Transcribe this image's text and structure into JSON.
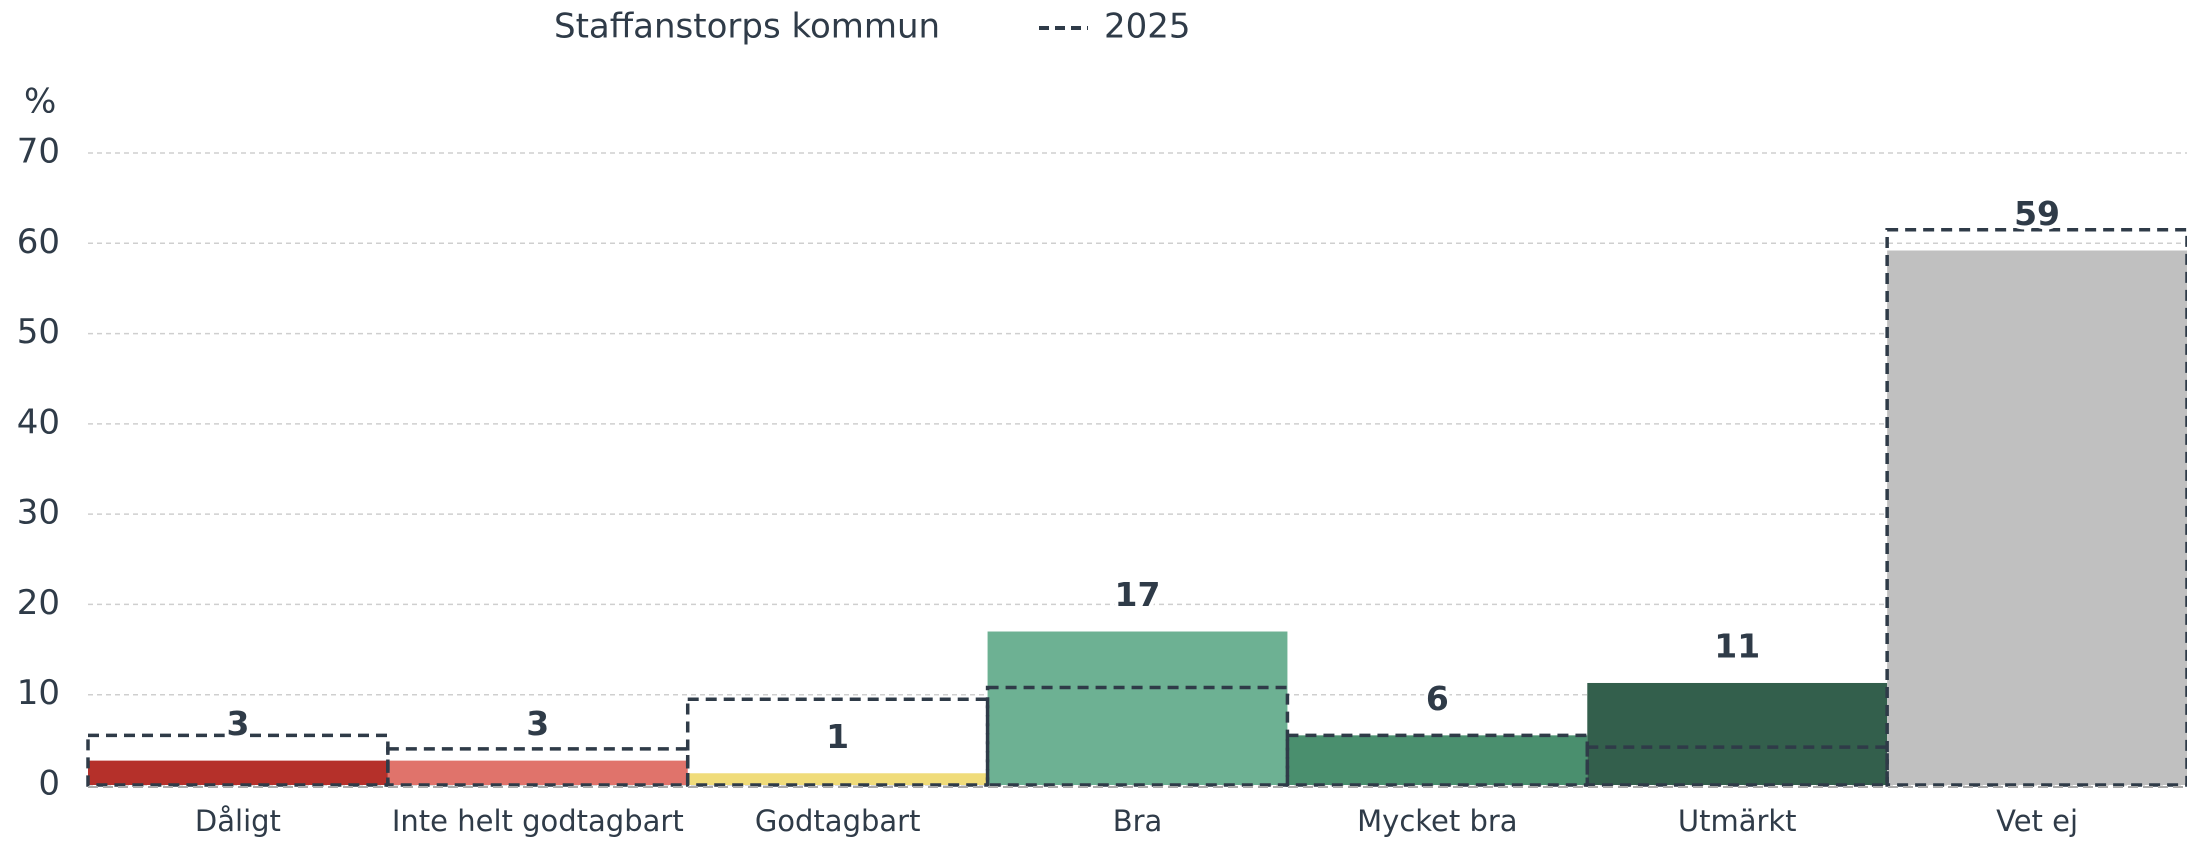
{
  "chart_data": {
    "type": "bar",
    "y_unit_label": "%",
    "categories": [
      "Dåligt",
      "Inte helt godtagbart",
      "Godtagbart",
      "Bra",
      "Mycket bra",
      "Utmärkt",
      "Vet ej"
    ],
    "series": [
      {
        "name": "Staffanstorps kommun",
        "colors": [
          "#b5302a",
          "#e0736b",
          "#f0dc7a",
          "#6db193",
          "#4a8f6e",
          "#335f4c",
          "#c0c0c0"
        ],
        "values": [
          2.7,
          2.7,
          1.3,
          17,
          5.5,
          11.3,
          59.2
        ],
        "value_labels": [
          "3",
          "3",
          "1",
          "17",
          "6",
          "11",
          "59"
        ]
      },
      {
        "name": "2025",
        "color": "#2f3b48",
        "style": "dashed",
        "values": [
          5.5,
          4,
          9.5,
          10.8,
          5.5,
          4.2,
          61.5
        ]
      }
    ],
    "ylim": [
      0,
      70
    ],
    "yticks": [
      0,
      10,
      20,
      30,
      40,
      50,
      60,
      70
    ],
    "grid": true
  }
}
